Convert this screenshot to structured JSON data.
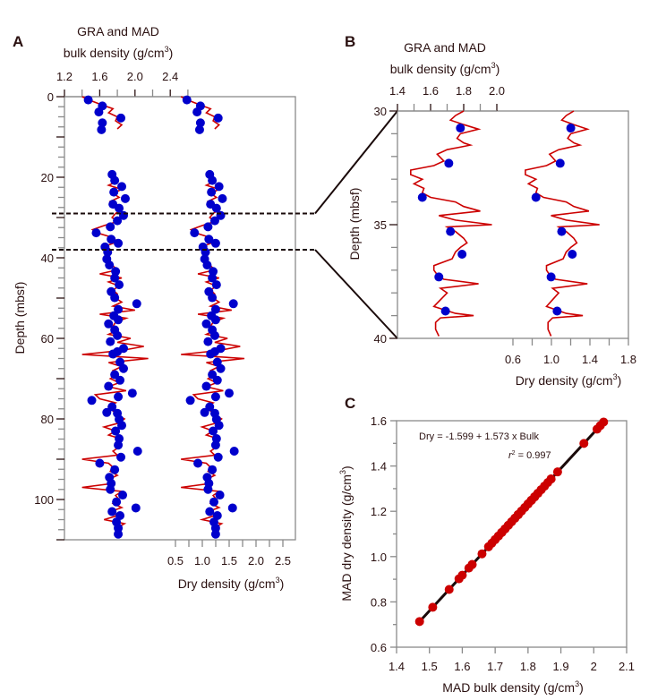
{
  "colors": {
    "gra": "#cc0000",
    "mad": "#0000cc",
    "scatter": "#cc0000",
    "fit": "#1a0a0a",
    "axis": "#2a1010",
    "frame": "#8a8a8a"
  },
  "chart_data": [
    {
      "type": "line",
      "panel_label": "A",
      "top_title": "GRA and MAD",
      "top_axis_label": "bulk density (g/cm",
      "bottom_axis_label": "Dry density (g/cm",
      "unit_superscript": "3",
      "unit_close": ")",
      "ylabel": "Depth (mbsf)",
      "ylim": [
        0,
        110
      ],
      "yticks": [
        "0",
        "20",
        "40",
        "60",
        "80",
        "100"
      ],
      "bulk_ticks": [
        "1.2",
        "1.6",
        "2.0",
        "2.4"
      ],
      "dry_ticks": [
        "0.5",
        "1.0",
        "1.5",
        "2.0",
        "2.5"
      ],
      "zoom_interval_depths": [
        29,
        38
      ],
      "gra_bulk": {
        "depth": [
          0,
          1,
          2,
          3,
          4,
          5,
          6,
          7,
          8,
          null,
          19,
          20,
          21,
          22,
          23,
          24,
          25,
          26,
          27,
          28,
          29,
          30,
          31,
          32,
          33,
          34,
          35,
          36,
          37,
          38,
          39,
          40,
          41,
          42,
          43,
          44,
          45,
          46,
          47,
          48,
          49,
          50,
          51,
          52,
          53,
          54,
          55,
          56,
          57,
          58,
          59,
          60,
          61,
          62,
          63,
          64,
          65,
          66,
          67,
          68,
          69,
          70,
          71,
          72,
          73,
          74,
          75,
          76,
          77,
          78,
          79,
          80,
          81,
          82,
          83,
          84,
          85,
          86,
          87,
          88,
          89,
          90,
          91,
          92,
          93,
          94,
          95,
          96,
          97,
          98,
          99,
          100,
          101,
          102,
          103,
          104,
          105,
          106,
          107,
          108,
          109
        ],
        "bulk": [
          1.4,
          1.5,
          1.62,
          1.75,
          1.7,
          1.8,
          1.78,
          1.85,
          1.8,
          null,
          1.78,
          1.72,
          1.8,
          1.7,
          1.85,
          1.75,
          1.82,
          1.72,
          1.8,
          1.85,
          1.78,
          1.74,
          1.8,
          1.65,
          1.52,
          1.6,
          1.75,
          1.8,
          1.68,
          1.72,
          1.7,
          1.68,
          1.7,
          1.75,
          1.8,
          1.6,
          1.85,
          1.7,
          1.82,
          1.75,
          1.8,
          1.78,
          1.85,
          1.75,
          2.0,
          1.6,
          1.9,
          1.78,
          1.75,
          1.8,
          1.7,
          1.95,
          1.8,
          2.1,
          1.85,
          1.4,
          2.15,
          1.7,
          1.85,
          1.75,
          1.8,
          1.72,
          1.82,
          1.7,
          1.9,
          1.55,
          1.6,
          1.78,
          1.7,
          1.75,
          1.8,
          1.88,
          1.82,
          1.65,
          1.78,
          1.7,
          1.85,
          1.78,
          1.82,
          1.75,
          1.8,
          1.4,
          1.7,
          1.75,
          1.72,
          1.8,
          1.7,
          1.75,
          1.4,
          1.85,
          1.78,
          1.82,
          1.75,
          1.85,
          1.72,
          1.8,
          1.65,
          1.88,
          1.8,
          1.82,
          1.85
        ]
      },
      "mad_bulk": {
        "depth": [
          0.8,
          2.3,
          3.8,
          5.3,
          6.5,
          8.2,
          19.3,
          20.8,
          22.3,
          23.7,
          25.3,
          26.7,
          27.7,
          29.5,
          30.8,
          32.3,
          33.8,
          35.4,
          36.4,
          37.3,
          38.6,
          40.3,
          41.8,
          43.4,
          45.0,
          46.7,
          48.4,
          49.9,
          51.4,
          52.8,
          54.4,
          55.4,
          56.4,
          57.9,
          59.3,
          60.8,
          62.5,
          63.3,
          63.9,
          65.9,
          67.5,
          69.0,
          70.4,
          71.9,
          73.6,
          74.5,
          75.4,
          77.0,
          78.4,
          78.6,
          80.1,
          81.6,
          83.0,
          84.9,
          86.5,
          88.0,
          89.5,
          91.0,
          92.6,
          94.5,
          96.0,
          97.5,
          98.9,
          100.6,
          102.1,
          103.0,
          104.0,
          105.6,
          107.1,
          108.6
        ],
        "bulk": [
          1.47,
          1.63,
          1.59,
          1.84,
          1.63,
          1.62,
          1.74,
          1.77,
          1.85,
          1.76,
          1.89,
          1.75,
          1.82,
          1.87,
          1.8,
          1.72,
          1.56,
          1.73,
          1.81,
          1.66,
          1.69,
          1.68,
          1.71,
          1.78,
          1.77,
          1.82,
          1.73,
          1.77,
          2.02,
          1.81,
          1.76,
          1.81,
          1.7,
          1.77,
          1.8,
          1.72,
          1.87,
          1.8,
          1.75,
          1.83,
          1.87,
          1.77,
          1.83,
          1.7,
          1.97,
          1.81,
          1.51,
          1.74,
          1.68,
          1.8,
          1.82,
          1.85,
          1.78,
          1.82,
          1.81,
          2.03,
          1.84,
          1.6,
          1.77,
          1.71,
          1.73,
          1.72,
          1.86,
          1.79,
          2.01,
          1.74,
          1.83,
          1.79,
          1.81,
          1.81
        ]
      }
    },
    {
      "type": "line",
      "panel_label": "B",
      "top_title": "GRA and MAD",
      "top_axis_label": "bulk density (g/cm",
      "bottom_axis_label": "Dry density (g/cm",
      "unit_superscript": "3",
      "unit_close": ")",
      "ylabel": "Depth (mbsf)",
      "ylim": [
        30,
        40
      ],
      "yticks": [
        "30",
        "35",
        "40"
      ],
      "bulk_ticks": [
        "1.4",
        "1.6",
        "1.8",
        "2.0"
      ],
      "dry_ticks": [
        "0.6",
        "1.0",
        "1.4",
        "1.8"
      ],
      "gra_bulk": {
        "depth": [
          30.0,
          30.2,
          30.4,
          30.6,
          30.8,
          31.0,
          31.2,
          31.4,
          31.5,
          31.7,
          31.9,
          32.2,
          32.4,
          32.6,
          32.8,
          33.0,
          33.2,
          33.4,
          33.6,
          33.8,
          34.0,
          34.2,
          34.4,
          34.6,
          34.8,
          35.0,
          35.1,
          35.3,
          35.6,
          35.8,
          36.0,
          36.2,
          36.5,
          36.8,
          37.0,
          37.2,
          37.4,
          37.6,
          37.8,
          38.0,
          38.3,
          38.6,
          38.9,
          39.0,
          39.1,
          39.3,
          39.6,
          39.9
        ],
        "bulk": [
          1.8,
          1.75,
          1.72,
          1.8,
          1.89,
          1.78,
          1.76,
          1.8,
          1.84,
          1.7,
          1.64,
          1.68,
          1.62,
          1.48,
          1.48,
          1.55,
          1.5,
          1.56,
          1.55,
          1.6,
          1.75,
          1.8,
          1.9,
          1.65,
          1.75,
          1.97,
          1.7,
          1.75,
          1.8,
          1.82,
          1.78,
          1.75,
          1.73,
          1.62,
          1.62,
          1.64,
          1.68,
          1.89,
          1.66,
          1.7,
          1.66,
          1.62,
          1.75,
          1.86,
          1.66,
          1.63,
          1.63,
          1.65
        ]
      },
      "mad_bulk": {
        "depth": [
          30.75,
          32.3,
          33.8,
          35.3,
          36.3,
          37.3,
          38.8
        ],
        "bulk": [
          1.78,
          1.71,
          1.55,
          1.72,
          1.79,
          1.65,
          1.69
        ]
      }
    },
    {
      "type": "scatter",
      "panel_label": "C",
      "xlabel": "MAD bulk density (g/cm",
      "ylabel": "MAD dry density (g/cm",
      "unit_superscript": "3",
      "unit_close": ")",
      "xlim": [
        1.4,
        2.1
      ],
      "ylim": [
        0.6,
        1.6
      ],
      "xticks": [
        "1.4",
        "1.5",
        "1.6",
        "1.7",
        "1.8",
        "1.9",
        "2",
        "2.1"
      ],
      "yticks": [
        "0.6",
        "0.8",
        "1.0",
        "1.2",
        "1.4",
        "1.6"
      ],
      "equation": "Dry = -1.599 + 1.573 x Bulk",
      "r2_label": "r",
      "r2_sup": "2",
      "r2_value": " = 0.997",
      "fit": {
        "intercept": -1.599,
        "slope": 1.573
      },
      "points_from": "MAD bulk density of panel A"
    }
  ]
}
